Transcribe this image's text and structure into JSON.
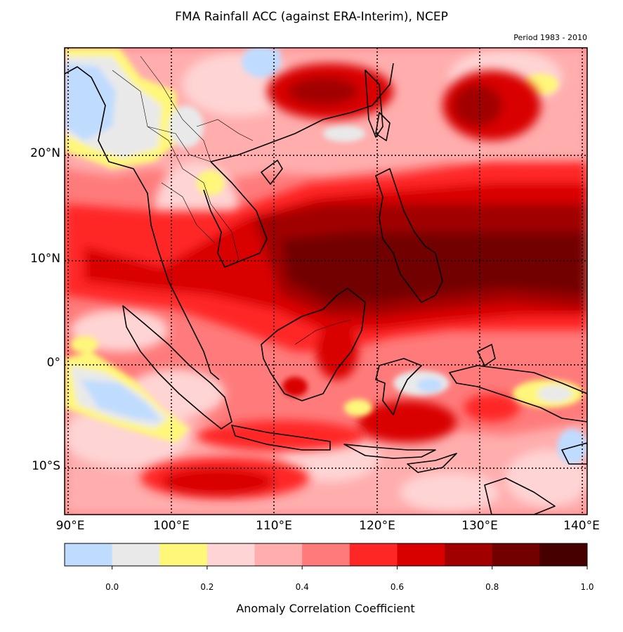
{
  "title": "FMA Rainfall ACC (against ERA-Interim), NCEP",
  "subtitle": "Period 1983 - 2010",
  "lat_labels": [
    "20°N",
    "10°N",
    "0°",
    "10°S"
  ],
  "lon_labels": [
    "90°E",
    "100°E",
    "110°E",
    "120°E",
    "130°E",
    "140°E"
  ],
  "colorbar": {
    "label": "Anomaly Correlation Coefficient",
    "ticks": [
      "0.0",
      "0.2",
      "0.4",
      "0.6",
      "0.8",
      "1.0"
    ],
    "colors": [
      "#bfdcff",
      "#e9e9e9",
      "#fff77a",
      "#ffd4d4",
      "#ffadad",
      "#ff7b7b",
      "#ff2626",
      "#d90000",
      "#a10000",
      "#730000",
      "#470000"
    ]
  },
  "map": {
    "lon_range": [
      89.5,
      140.5
    ],
    "lat_range": [
      -14.5,
      30
    ],
    "gridlines": "dotted",
    "coastlines": true,
    "country_borders": true
  }
}
